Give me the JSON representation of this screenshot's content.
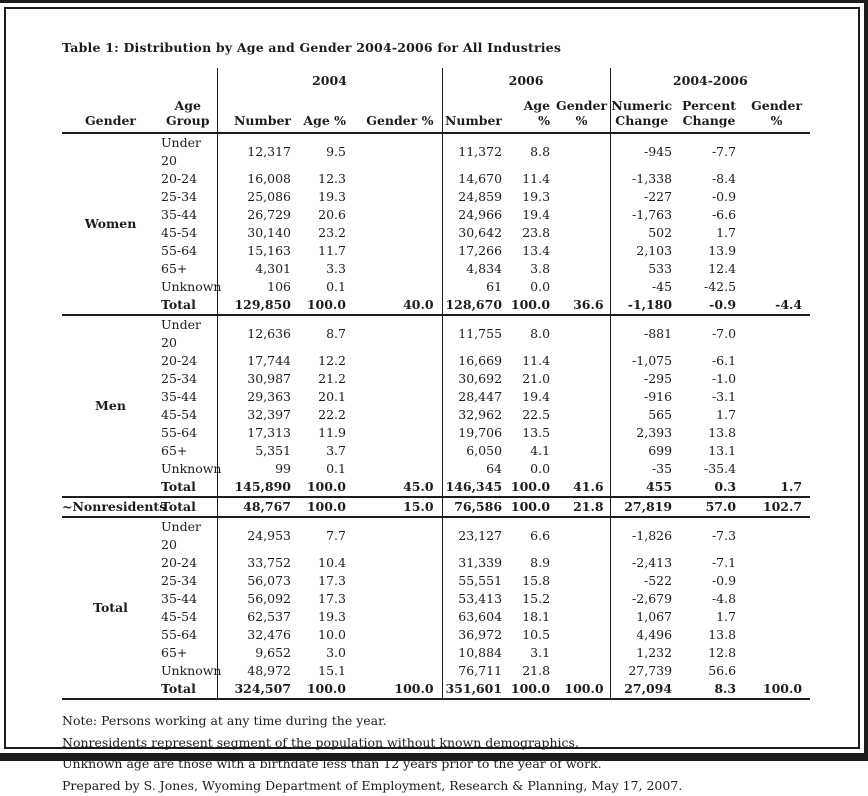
{
  "title": "Table 1: Distribution by Age and Gender 2004-2006 for All Industries",
  "table": {
    "group_headers": [
      "2004",
      "2006",
      "2004-2006"
    ],
    "columns": [
      "Gender",
      "Age\nGroup",
      "Number",
      "Age %",
      "Gender %",
      "Number",
      "Age %",
      "Gender\n%",
      "Numeric\nChange",
      "Percent\nChange",
      "Gender\n%"
    ],
    "sections": [
      {
        "gender": "Women",
        "rows": [
          [
            "Under 20",
            "12,317",
            "9.5",
            "",
            "11,372",
            "8.8",
            "",
            "-945",
            "-7.7",
            ""
          ],
          [
            "20-24",
            "16,008",
            "12.3",
            "",
            "14,670",
            "11.4",
            "",
            "-1,338",
            "-8.4",
            ""
          ],
          [
            "25-34",
            "25,086",
            "19.3",
            "",
            "24,859",
            "19.3",
            "",
            "-227",
            "-0.9",
            ""
          ],
          [
            "35-44",
            "26,729",
            "20.6",
            "",
            "24,966",
            "19.4",
            "",
            "-1,763",
            "-6.6",
            ""
          ],
          [
            "45-54",
            "30,140",
            "23.2",
            "",
            "30,642",
            "23.8",
            "",
            "502",
            "1.7",
            ""
          ],
          [
            "55-64",
            "15,163",
            "11.7",
            "",
            "17,266",
            "13.4",
            "",
            "2,103",
            "13.9",
            ""
          ],
          [
            "65+",
            "4,301",
            "3.3",
            "",
            "4,834",
            "3.8",
            "",
            "533",
            "12.4",
            ""
          ],
          [
            "Unknown",
            "106",
            "0.1",
            "",
            "61",
            "0.0",
            "",
            "-45",
            "-42.5",
            ""
          ],
          [
            "Total",
            "129,850",
            "100.0",
            "40.0",
            "128,670",
            "100.0",
            "36.6",
            "-1,180",
            "-0.9",
            "-4.4"
          ]
        ]
      },
      {
        "gender": "Men",
        "rows": [
          [
            "Under 20",
            "12,636",
            "8.7",
            "",
            "11,755",
            "8.0",
            "",
            "-881",
            "-7.0",
            ""
          ],
          [
            "20-24",
            "17,744",
            "12.2",
            "",
            "16,669",
            "11.4",
            "",
            "-1,075",
            "-6.1",
            ""
          ],
          [
            "25-34",
            "30,987",
            "21.2",
            "",
            "30,692",
            "21.0",
            "",
            "-295",
            "-1.0",
            ""
          ],
          [
            "35-44",
            "29,363",
            "20.1",
            "",
            "28,447",
            "19.4",
            "",
            "-916",
            "-3.1",
            ""
          ],
          [
            "45-54",
            "32,397",
            "22.2",
            "",
            "32,962",
            "22.5",
            "",
            "565",
            "1.7",
            ""
          ],
          [
            "55-64",
            "17,313",
            "11.9",
            "",
            "19,706",
            "13.5",
            "",
            "2,393",
            "13.8",
            ""
          ],
          [
            "65+",
            "5,351",
            "3.7",
            "",
            "6,050",
            "4.1",
            "",
            "699",
            "13.1",
            ""
          ],
          [
            "Unknown",
            "99",
            "0.1",
            "",
            "64",
            "0.0",
            "",
            "-35",
            "-35.4",
            ""
          ],
          [
            "Total",
            "145,890",
            "100.0",
            "45.0",
            "146,345",
            "100.0",
            "41.6",
            "455",
            "0.3",
            "1.7"
          ]
        ]
      },
      {
        "gender": "~Nonresidents",
        "rows": [
          [
            "Total",
            "48,767",
            "100.0",
            "15.0",
            "76,586",
            "100.0",
            "21.8",
            "27,819",
            "57.0",
            "102.7"
          ]
        ]
      },
      {
        "gender": "Total",
        "rows": [
          [
            "Under 20",
            "24,953",
            "7.7",
            "",
            "23,127",
            "6.6",
            "",
            "-1,826",
            "-7.3",
            ""
          ],
          [
            "20-24",
            "33,752",
            "10.4",
            "",
            "31,339",
            "8.9",
            "",
            "-2,413",
            "-7.1",
            ""
          ],
          [
            "25-34",
            "56,073",
            "17.3",
            "",
            "55,551",
            "15.8",
            "",
            "-522",
            "-0.9",
            ""
          ],
          [
            "35-44",
            "56,092",
            "17.3",
            "",
            "53,413",
            "15.2",
            "",
            "-2,679",
            "-4.8",
            ""
          ],
          [
            "45-54",
            "62,537",
            "19.3",
            "",
            "63,604",
            "18.1",
            "",
            "1,067",
            "1.7",
            ""
          ],
          [
            "55-64",
            "32,476",
            "10.0",
            "",
            "36,972",
            "10.5",
            "",
            "4,496",
            "13.8",
            ""
          ],
          [
            "65+",
            "9,652",
            "3.0",
            "",
            "10,884",
            "3.1",
            "",
            "1,232",
            "12.8",
            ""
          ],
          [
            "Unknown",
            "48,972",
            "15.1",
            "",
            "76,711",
            "21.8",
            "",
            "27,739",
            "56.6",
            ""
          ],
          [
            "Total",
            "324,507",
            "100.0",
            "100.0",
            "351,601",
            "100.0",
            "100.0",
            "27,094",
            "8.3",
            "100.0"
          ]
        ]
      }
    ]
  },
  "notes": [
    "Note: Persons working at any time during the year.",
    "Nonresidents represent segment of the population without known demographics.",
    "Unknown age are those with a birthdate less than 12 years prior to the year of work.",
    "Prepared by S. Jones, Wyoming Department of Employment, Research & Planning, May 17, 2007."
  ]
}
